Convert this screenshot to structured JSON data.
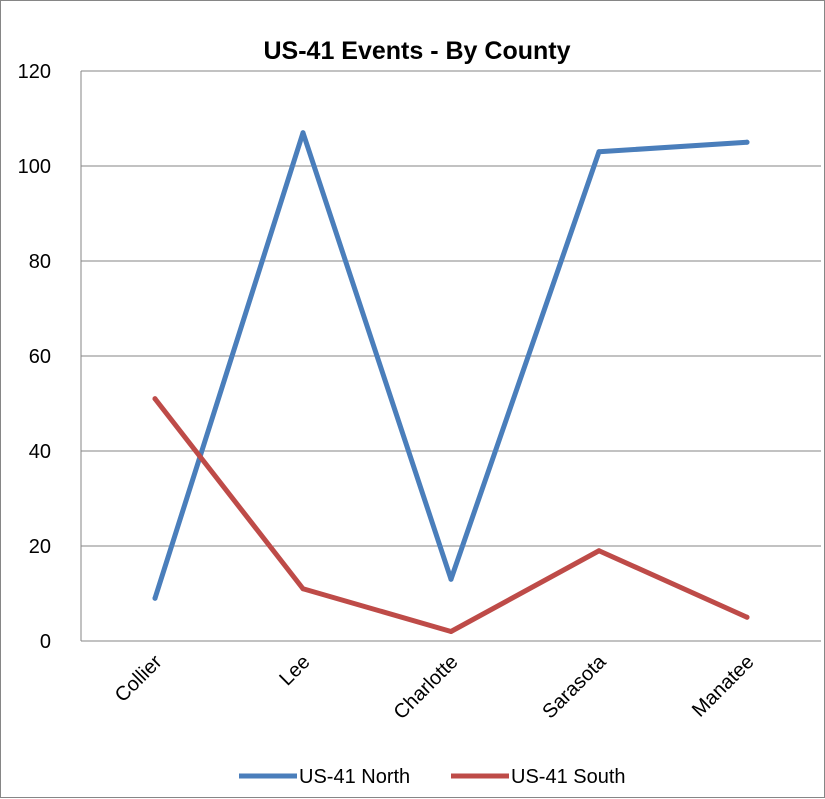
{
  "chart_data": {
    "type": "line",
    "title": "US-41 Events - By County",
    "xlabel": "",
    "ylabel": "",
    "categories": [
      "Collier",
      "Lee",
      "Charlotte",
      "Sarasota",
      "Manatee"
    ],
    "series": [
      {
        "name": "US-41 North",
        "values": [
          9,
          107,
          13,
          103,
          105
        ],
        "color": "#4A7EBB"
      },
      {
        "name": "US-41 South",
        "values": [
          51,
          11,
          2,
          19,
          5
        ],
        "color": "#BE4B48"
      }
    ],
    "ylim": [
      0,
      120
    ],
    "yticks": [
      0,
      20,
      40,
      60,
      80,
      100,
      120
    ],
    "grid": true,
    "legend_position": "bottom"
  }
}
